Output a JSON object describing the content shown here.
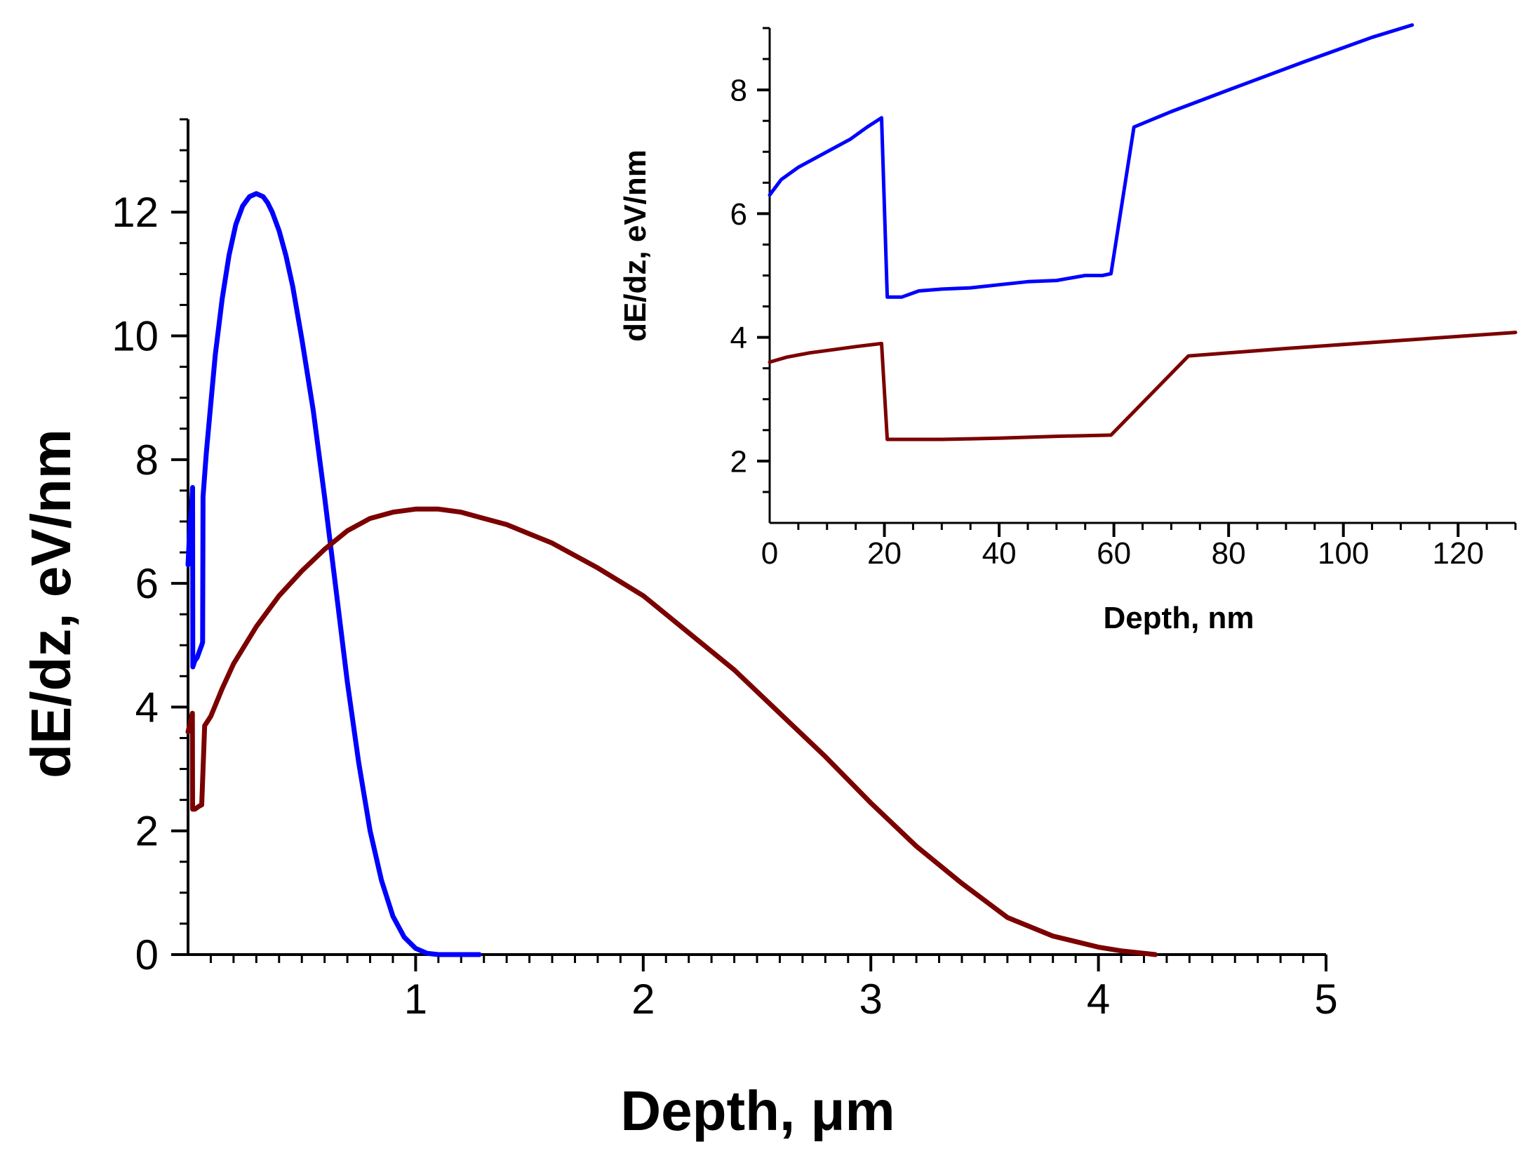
{
  "chart_data": [
    {
      "id": "main",
      "type": "line",
      "xlabel": "Depth, μm",
      "ylabel": "dE/dz, eV/nm",
      "xlim": [
        0,
        5
      ],
      "ylim": [
        0,
        13.5
      ],
      "x_ticks": [
        1,
        2,
        3,
        4,
        5
      ],
      "y_ticks": [
        0,
        2,
        4,
        6,
        8,
        10,
        12
      ],
      "grid": false,
      "legend": "none",
      "series": [
        {
          "name": "blue",
          "color": "#0000ff",
          "x": [
            0,
            0.005,
            0.01,
            0.015,
            0.02,
            0.021,
            0.03,
            0.04,
            0.05,
            0.055,
            0.06,
            0.064,
            0.066,
            0.07,
            0.08,
            0.1,
            0.12,
            0.15,
            0.18,
            0.21,
            0.24,
            0.27,
            0.3,
            0.33,
            0.35,
            0.37,
            0.4,
            0.43,
            0.46,
            0.5,
            0.55,
            0.6,
            0.65,
            0.7,
            0.75,
            0.8,
            0.85,
            0.9,
            0.95,
            1.0,
            1.05,
            1.1,
            1.15,
            1.2,
            1.25,
            1.28
          ],
          "values": [
            6.3,
            6.7,
            7.0,
            7.2,
            7.55,
            4.65,
            4.75,
            4.8,
            4.9,
            4.95,
            5.0,
            5.05,
            7.4,
            7.6,
            8.1,
            8.9,
            9.7,
            10.6,
            11.3,
            11.8,
            12.1,
            12.25,
            12.3,
            12.25,
            12.15,
            12.0,
            11.7,
            11.3,
            10.8,
            9.95,
            8.8,
            7.4,
            5.9,
            4.4,
            3.1,
            2.0,
            1.2,
            0.62,
            0.28,
            0.1,
            0.02,
            0.0,
            0.0,
            0.0,
            0.0,
            0.0
          ]
        },
        {
          "name": "dark-red",
          "color": "#7b0000",
          "x": [
            0,
            0.01,
            0.019,
            0.02,
            0.03,
            0.05,
            0.06,
            0.073,
            0.1,
            0.15,
            0.2,
            0.3,
            0.4,
            0.5,
            0.6,
            0.7,
            0.8,
            0.9,
            1.0,
            1.1,
            1.2,
            1.3,
            1.4,
            1.5,
            1.6,
            1.8,
            2.0,
            2.2,
            2.4,
            2.6,
            2.8,
            3.0,
            3.2,
            3.4,
            3.6,
            3.8,
            4.0,
            4.1,
            4.2,
            4.25
          ],
          "values": [
            3.6,
            3.75,
            3.9,
            2.35,
            2.35,
            2.4,
            2.42,
            3.7,
            3.85,
            4.3,
            4.7,
            5.3,
            5.8,
            6.2,
            6.55,
            6.85,
            7.05,
            7.15,
            7.2,
            7.2,
            7.15,
            7.05,
            6.95,
            6.8,
            6.65,
            6.25,
            5.8,
            5.2,
            4.6,
            3.9,
            3.2,
            2.45,
            1.75,
            1.15,
            0.6,
            0.3,
            0.12,
            0.06,
            0.02,
            0.0
          ]
        }
      ]
    },
    {
      "id": "inset",
      "type": "line",
      "xlabel": "Depth, nm",
      "ylabel": "dE/dz, eV/nm",
      "xlim": [
        0,
        130
      ],
      "ylim": [
        1,
        9
      ],
      "x_ticks": [
        0,
        20,
        40,
        60,
        80,
        100,
        120
      ],
      "y_ticks": [
        2,
        4,
        6,
        8
      ],
      "grid": false,
      "legend": "none",
      "series": [
        {
          "name": "blue",
          "color": "#0000ff",
          "x": [
            0,
            2,
            5,
            8,
            11,
            14,
            17,
            19.5,
            20.5,
            23,
            26,
            30,
            35,
            40,
            45,
            50,
            55,
            58,
            59.5,
            63.5,
            70,
            80,
            93,
            105,
            112
          ],
          "values": [
            6.3,
            6.55,
            6.75,
            6.9,
            7.05,
            7.2,
            7.4,
            7.55,
            4.65,
            4.65,
            4.75,
            4.78,
            4.8,
            4.85,
            4.9,
            4.92,
            5.0,
            5.0,
            5.03,
            7.4,
            7.65,
            8.0,
            8.45,
            8.85,
            9.05
          ]
        },
        {
          "name": "dark-red",
          "color": "#7b0000",
          "x": [
            0,
            3,
            7,
            11,
            15,
            19.5,
            20.5,
            30,
            40,
            50,
            59.5,
            73,
            90,
            110,
            130
          ],
          "values": [
            3.6,
            3.68,
            3.75,
            3.8,
            3.85,
            3.9,
            2.35,
            2.35,
            2.37,
            2.4,
            2.42,
            3.7,
            3.82,
            3.95,
            4.08
          ]
        }
      ]
    }
  ]
}
